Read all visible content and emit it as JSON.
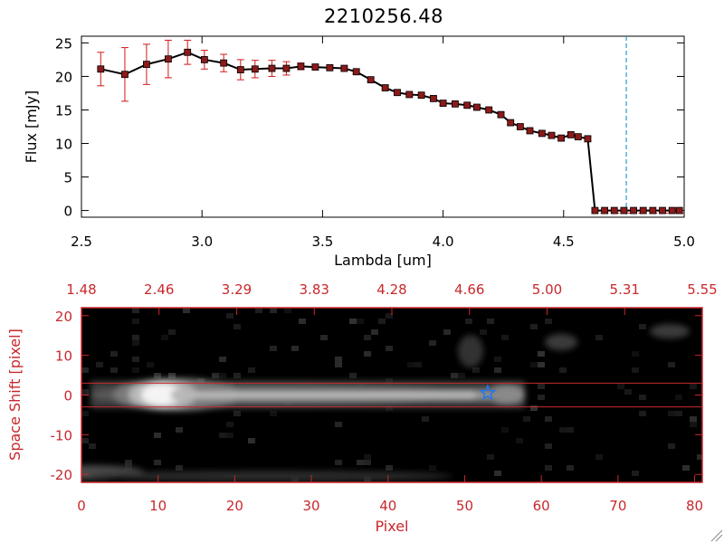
{
  "page": {
    "title": "2210256.48"
  },
  "colors": {
    "axis_top": "#000000",
    "axis_bottom": "#c8282d",
    "errorbar": "#d01818",
    "marker": "#8b1a1a",
    "series": "#000000",
    "vline": "#2a9bc4",
    "star": "#2277ee"
  },
  "chart_data": [
    {
      "type": "line",
      "title": "2210256.48",
      "xlabel": "Lambda [um]",
      "ylabel": "Flux [mJy]",
      "xlim": [
        2.5,
        5.0
      ],
      "ylim": [
        -1,
        26
      ],
      "xticks": [
        "2.5",
        "3.0",
        "3.5",
        "4.0",
        "4.5",
        "5.0"
      ],
      "yticks": [
        "0",
        "5",
        "10",
        "15",
        "20",
        "25"
      ],
      "grid": false,
      "vline_x": 4.76,
      "series": [
        {
          "x": [
            2.58,
            2.68,
            2.77,
            2.86,
            2.94,
            3.01,
            3.09,
            3.16,
            3.22,
            3.29,
            3.35,
            3.41,
            3.47,
            3.53,
            3.59,
            3.64,
            3.7,
            3.76,
            3.81,
            3.86,
            3.91,
            3.96,
            4.0,
            4.05,
            4.1,
            4.14,
            4.19,
            4.24,
            4.28,
            4.32,
            4.36,
            4.41,
            4.45,
            4.49,
            4.53,
            4.56,
            4.6,
            4.63,
            4.67,
            4.71,
            4.75,
            4.79,
            4.83,
            4.87,
            4.91,
            4.95,
            4.98
          ],
          "y": [
            21.1,
            20.3,
            21.8,
            22.6,
            23.6,
            22.5,
            22.0,
            21.0,
            21.1,
            21.2,
            21.2,
            21.5,
            21.4,
            21.3,
            21.2,
            20.7,
            19.5,
            18.3,
            17.6,
            17.3,
            17.2,
            16.7,
            16.0,
            15.9,
            15.7,
            15.4,
            15.0,
            14.3,
            13.1,
            12.5,
            11.9,
            11.5,
            11.2,
            10.8,
            11.3,
            11.0,
            10.7,
            0,
            0,
            0,
            0,
            0,
            0,
            0,
            0,
            0,
            0
          ],
          "yerr": [
            2.5,
            4.0,
            3.0,
            2.8,
            1.8,
            1.4,
            1.3,
            1.5,
            1.3,
            1.2,
            1.0,
            0.5,
            0.4,
            0.3,
            0.3,
            0.3,
            0.3,
            0.3,
            0.3,
            0.3,
            0.3,
            0.3,
            0.3,
            0.3,
            0.3,
            0.3,
            0.3,
            0.3,
            0.3,
            0.3,
            0.3,
            0.3,
            0.3,
            0.3,
            0.3,
            0.3,
            0.3,
            0.2,
            0.2,
            0.2,
            0.2,
            0.2,
            0.2,
            0.2,
            0.2,
            0.2,
            0.2
          ]
        }
      ]
    },
    {
      "type": "heatmap",
      "xlabel": "Pixel",
      "ylabel": "Space Shift [pixel]",
      "xlim": [
        0,
        81
      ],
      "ylim": [
        -22,
        22
      ],
      "xticks": [
        "0",
        "10",
        "20",
        "30",
        "40",
        "50",
        "60",
        "70",
        "80"
      ],
      "yticks": [
        "-20",
        "-10",
        "0",
        "10",
        "20"
      ],
      "top_ticks": [
        "1.48",
        "2.46",
        "3.29",
        "3.83",
        "4.28",
        "4.66",
        "5.00",
        "5.31",
        "5.55"
      ],
      "aperture_lines": [
        3,
        -3
      ],
      "star": {
        "x": 53,
        "y": 0.5
      }
    }
  ]
}
